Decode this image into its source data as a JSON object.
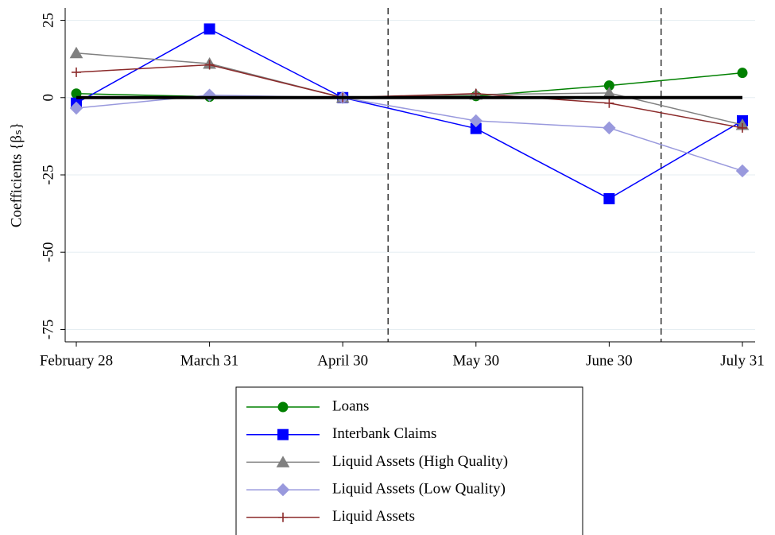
{
  "chart_data": {
    "type": "line",
    "ylabel": "Coefficients {βₛ}",
    "categories": [
      "February 28",
      "March 31",
      "April 30",
      "May 30",
      "June 30",
      "July 31"
    ],
    "ylim": [
      -79,
      29
    ],
    "yticks": [
      25,
      0,
      -25,
      -50,
      -75
    ],
    "grid": true,
    "zero_line": 0,
    "vlines": [
      2.34,
      4.39
    ],
    "series": [
      {
        "name": "Loans",
        "color": "#008000",
        "marker": "circle",
        "values": [
          1.3,
          0.3,
          0,
          0.5,
          3.9,
          8.0
        ]
      },
      {
        "name": "Interbank Claims",
        "color": "#0000ff",
        "marker": "square",
        "values": [
          -1.8,
          22.2,
          0,
          -10,
          -32.7,
          -7.5
        ]
      },
      {
        "name": "Liquid Assets (High Quality)",
        "color": "#808080",
        "marker": "triangle",
        "values": [
          14.4,
          11,
          0,
          1,
          1.5,
          -8.8
        ]
      },
      {
        "name": "Liquid Assets (Low Quality)",
        "color": "#9999dd",
        "marker": "diamond",
        "values": [
          -3.4,
          0.8,
          0,
          -7.5,
          -9.8,
          -23.7
        ]
      },
      {
        "name": "Liquid Assets",
        "color": "#8b2a2a",
        "marker": "plus",
        "values": [
          8.2,
          10.6,
          0,
          1.3,
          -1.8,
          -9.8
        ]
      }
    ]
  }
}
